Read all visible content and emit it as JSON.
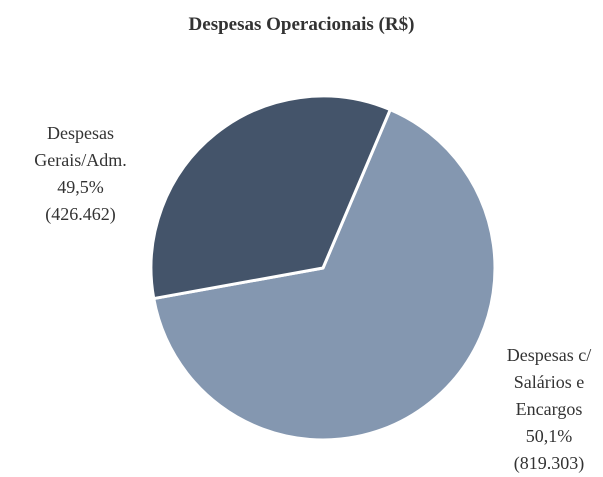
{
  "chart_data": {
    "type": "pie",
    "title": "Despesas Operacionais (R$)",
    "categories": [
      "Despesas Gerais/Adm.",
      "Despesas c/ Salários e Encargos"
    ],
    "values": [
      426462,
      819303
    ],
    "value_labels": [
      "(426.462)",
      "(819.303)"
    ],
    "percent_labels": [
      "49,5%",
      "50,1%"
    ],
    "colors": [
      "#44546a",
      "#8497b0"
    ]
  }
}
